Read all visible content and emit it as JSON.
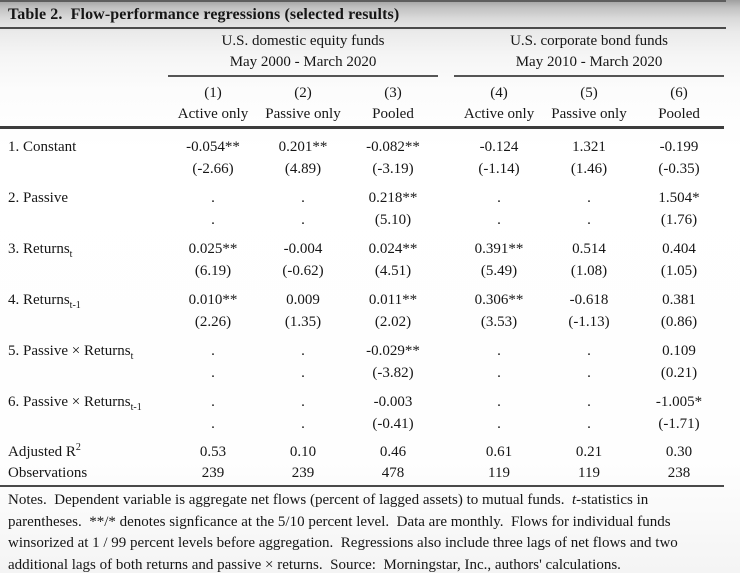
{
  "table": {
    "title": "Table 2.  Flow-performance regressions (selected results)",
    "groups": [
      {
        "name": "U.S. domestic equity funds",
        "period": "May 2000 - March 2020"
      },
      {
        "name": "U.S. corporate bond funds",
        "period": "May 2010 - March 2020"
      }
    ],
    "column_numbers": [
      "(1)",
      "(2)",
      "(3)",
      "(4)",
      "(5)",
      "(6)"
    ],
    "column_types": [
      "Active only",
      "Passive only",
      "Pooled",
      "Active only",
      "Passive only",
      "Pooled"
    ],
    "rows": [
      {
        "label": "1. Constant",
        "coef": [
          "-0.054**",
          "0.201**",
          "-0.082**",
          "-0.124",
          "1.321",
          "-0.199"
        ],
        "tstat": [
          "(-2.66)",
          "(4.89)",
          "(-3.19)",
          "(-1.14)",
          "(1.46)",
          "(-0.35)"
        ]
      },
      {
        "label": "2. Passive",
        "coef": [
          ".",
          ".",
          "0.218**",
          ".",
          ".",
          "1.504*"
        ],
        "tstat": [
          ".",
          ".",
          "(5.10)",
          ".",
          ".",
          "(1.76)"
        ]
      },
      {
        "label": "3. Returns",
        "sub": "t",
        "coef": [
          "0.025**",
          "-0.004",
          "0.024**",
          "0.391**",
          "0.514",
          "0.404"
        ],
        "tstat": [
          "(6.19)",
          "(-0.62)",
          "(4.51)",
          "(5.49)",
          "(1.08)",
          "(1.05)"
        ]
      },
      {
        "label": "4. Returns",
        "sub": "t-1",
        "coef": [
          "0.010**",
          "0.009",
          "0.011**",
          "0.306**",
          "-0.618",
          "0.381"
        ],
        "tstat": [
          "(2.26)",
          "(1.35)",
          "(2.02)",
          "(3.53)",
          "(-1.13)",
          "(0.86)"
        ]
      },
      {
        "label": "5. Passive × Returns",
        "sub": "t",
        "coef": [
          ".",
          ".",
          "-0.029**",
          ".",
          ".",
          "0.109"
        ],
        "tstat": [
          ".",
          ".",
          "(-3.82)",
          ".",
          ".",
          "(0.21)"
        ]
      },
      {
        "label": "6. Passive × Returns",
        "sub": "t-1",
        "coef": [
          ".",
          ".",
          "-0.003",
          ".",
          ".",
          "-1.005*"
        ],
        "tstat": [
          ".",
          ".",
          "(-0.41)",
          ".",
          ".",
          "(-1.71)"
        ]
      }
    ],
    "summary_rows": [
      {
        "label": "Adjusted R",
        "sup": "2",
        "values": [
          "0.53",
          "0.10",
          "0.46",
          "0.61",
          "0.21",
          "0.30"
        ]
      },
      {
        "label": "Observations",
        "values": [
          "239",
          "239",
          "478",
          "119",
          "119",
          "238"
        ]
      }
    ],
    "notes_lines": [
      [
        {
          "t": "Notes.  Dependent variable is aggregate net flows (percent of lagged assets) to mutual funds.  "
        },
        {
          "t": "t",
          "i": true
        },
        {
          "t": "-statistics in"
        }
      ],
      [
        {
          "t": "parentheses.  **/* denotes signficance at the 5/10 percent level.  Data are monthly.  Flows for individual funds"
        }
      ],
      [
        {
          "t": "winsorized at 1 / 99 percent levels before aggregation.  Regressions also include three lags of net flows and two"
        }
      ],
      [
        {
          "t": "additional lags of both returns and passive × returns.  Source:  Morningstar, Inc., authors' calculations."
        }
      ]
    ]
  }
}
